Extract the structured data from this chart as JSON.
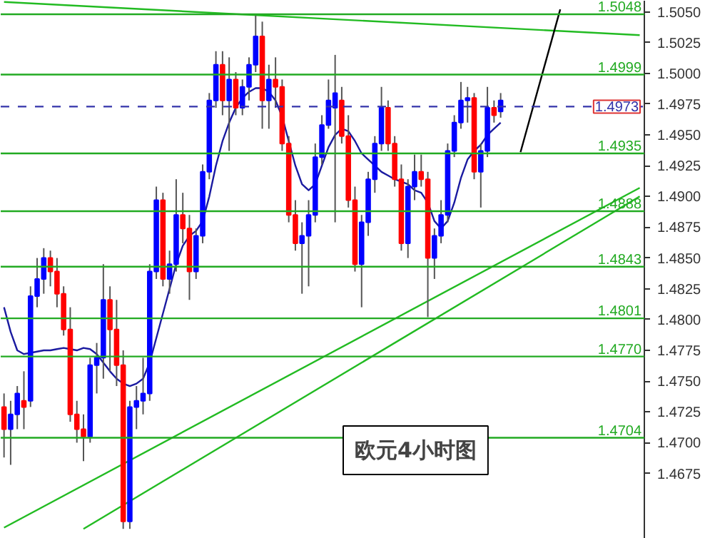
{
  "chart_data": {
    "type": "candlestick",
    "categories": [
      null,
      null,
      null,
      null,
      null,
      null,
      null,
      null,
      null,
      null,
      null,
      null,
      null,
      null,
      null,
      null,
      null,
      null,
      null,
      null,
      null,
      null,
      null,
      null,
      null,
      null,
      null,
      null,
      null,
      null,
      null,
      null,
      null,
      null,
      null,
      null,
      null,
      null,
      null,
      null,
      null,
      null,
      null,
      null,
      null,
      null,
      null,
      null,
      null,
      null,
      null,
      null,
      null,
      null,
      null,
      null,
      null,
      null,
      null,
      null,
      null,
      null,
      null,
      null,
      null,
      null,
      null,
      null,
      null,
      null,
      null,
      null,
      null,
      null,
      null,
      null,
      null,
      null,
      null,
      null,
      null,
      null,
      null,
      null,
      null,
      null,
      null,
      null,
      null,
      null,
      null,
      null,
      null,
      null,
      null,
      null,
      null
    ],
    "ohlc": [
      [
        1.4729,
        1.474,
        1.4688,
        1.4711
      ],
      [
        1.4711,
        1.4734,
        1.4682,
        1.4723
      ],
      [
        1.4723,
        1.4746,
        1.4711,
        1.474
      ],
      [
        1.4734,
        1.4758,
        1.4711,
        1.4729
      ],
      [
        1.4734,
        1.4827,
        1.4729,
        1.4819
      ],
      [
        1.4819,
        1.485,
        1.481,
        1.4833
      ],
      [
        1.4833,
        1.4858,
        1.4821,
        1.485
      ],
      [
        1.485,
        1.4856,
        1.4827,
        1.4839
      ],
      [
        1.4839,
        1.485,
        1.481,
        1.4821
      ],
      [
        1.4821,
        1.4827,
        1.4787,
        1.4792
      ],
      [
        1.4792,
        1.481,
        1.4717,
        1.4723
      ],
      [
        1.4723,
        1.4734,
        1.47,
        1.4711
      ],
      [
        1.4711,
        1.4723,
        1.4685,
        1.4705
      ],
      [
        1.4705,
        1.4769,
        1.47,
        1.4763
      ],
      [
        1.4763,
        1.4781,
        1.474,
        1.4769
      ],
      [
        1.4769,
        1.4845,
        1.4752,
        1.4816
      ],
      [
        1.4816,
        1.4827,
        1.4758,
        1.4792
      ],
      [
        1.4792,
        1.4816,
        1.4746,
        1.4763
      ],
      [
        1.4763,
        1.4775,
        1.463,
        1.4636
      ],
      [
        1.4636,
        1.4734,
        1.463,
        1.4729
      ],
      [
        1.4729,
        1.4746,
        1.4711,
        1.4734
      ],
      [
        1.4734,
        1.4769,
        1.4723,
        1.474
      ],
      [
        1.474,
        1.4845,
        1.4734,
        1.4839
      ],
      [
        1.4839,
        1.4908,
        1.4833,
        1.4897
      ],
      [
        1.4897,
        1.4903,
        1.4827,
        1.4833
      ],
      [
        1.4833,
        1.4856,
        1.4821,
        1.4845
      ],
      [
        1.4845,
        1.4914,
        1.4839,
        1.4885
      ],
      [
        1.4885,
        1.4903,
        1.4862,
        1.4874
      ],
      [
        1.4874,
        1.4885,
        1.4816,
        1.4839
      ],
      [
        1.4839,
        1.4874,
        1.4833,
        1.4868
      ],
      [
        1.4868,
        1.4926,
        1.4862,
        1.492
      ],
      [
        1.492,
        1.4984,
        1.4914,
        1.4978
      ],
      [
        1.4978,
        1.5018,
        1.4972,
        1.5007
      ],
      [
        1.5007,
        1.5018,
        1.4966,
        1.4978
      ],
      [
        1.4978,
        1.5013,
        1.4937,
        1.4995
      ],
      [
        1.4995,
        1.5001,
        1.4966,
        1.4972
      ],
      [
        1.4972,
        1.4995,
        1.4966,
        1.4989
      ],
      [
        1.4989,
        1.5013,
        1.4978,
        1.5007
      ],
      [
        1.5007,
        1.5047,
        1.5001,
        1.503
      ],
      [
        1.503,
        1.5042,
        1.4955,
        1.4978
      ],
      [
        1.4978,
        1.5007,
        1.4955,
        1.4995
      ],
      [
        1.4995,
        1.5013,
        1.4972,
        1.4989
      ],
      [
        1.4989,
        1.4995,
        1.4937,
        1.4943
      ],
      [
        1.4943,
        1.4949,
        1.4879,
        1.4885
      ],
      [
        1.4885,
        1.4897,
        1.4856,
        1.4862
      ],
      [
        1.4862,
        1.4879,
        1.4821,
        1.4868
      ],
      [
        1.4868,
        1.4897,
        1.4827,
        1.4885
      ],
      [
        1.4885,
        1.4943,
        1.4879,
        1.4932
      ],
      [
        1.4932,
        1.4966,
        1.4926,
        1.4958
      ],
      [
        1.4958,
        1.4995,
        1.4955,
        1.4978
      ],
      [
        1.4972,
        1.5015,
        1.4879,
        1.4984
      ],
      [
        1.4978,
        1.4989,
        1.4943,
        1.4949
      ],
      [
        1.4949,
        1.4966,
        1.4891,
        1.4897
      ],
      [
        1.4897,
        1.4908,
        1.4839,
        1.4845
      ],
      [
        1.4845,
        1.4885,
        1.481,
        1.4879
      ],
      [
        1.4879,
        1.492,
        1.4868,
        1.4914
      ],
      [
        1.4914,
        1.4949,
        1.4903,
        1.4943
      ],
      [
        1.4943,
        1.4989,
        1.4937,
        1.4972
      ],
      [
        1.4972,
        1.4978,
        1.4937,
        1.4943
      ],
      [
        1.4943,
        1.4949,
        1.4908,
        1.4914
      ],
      [
        1.4914,
        1.4926,
        1.4856,
        1.4862
      ],
      [
        1.4862,
        1.4914,
        1.485,
        1.4908
      ],
      [
        1.4908,
        1.4934,
        1.4897,
        1.492
      ],
      [
        1.492,
        1.4934,
        1.4908,
        1.4914
      ],
      [
        1.4914,
        1.492,
        1.4802,
        1.485
      ],
      [
        1.485,
        1.4874,
        1.4833,
        1.4868
      ],
      [
        1.4868,
        1.4897,
        1.4862,
        1.4885
      ],
      [
        1.4885,
        1.4943,
        1.4879,
        1.4937
      ],
      [
        1.4937,
        1.4966,
        1.4932,
        1.496
      ],
      [
        1.496,
        1.4993,
        1.4955,
        1.4978
      ],
      [
        1.4978,
        1.4989,
        1.496,
        1.498
      ],
      [
        1.498,
        1.4984,
        1.4914,
        1.492
      ],
      [
        1.492,
        1.4943,
        1.4891,
        1.4937
      ],
      [
        1.4937,
        1.4989,
        1.4932,
        1.4972
      ],
      [
        1.4972,
        1.4978,
        1.496,
        1.4966
      ],
      [
        1.4969,
        1.4984,
        1.4964,
        1.4978
      ],
      null,
      null,
      null,
      null,
      null,
      null,
      null,
      null,
      null,
      null,
      null,
      null,
      null,
      null,
      null,
      null,
      null,
      null,
      null,
      null,
      null
    ],
    "colors": [
      "#ff0000",
      "#0000ff",
      "#0000ff",
      "#ff0000",
      "#0000ff",
      "#0000ff",
      "#0000ff",
      "#ff0000",
      "#ff0000",
      "#ff0000",
      "#ff0000",
      "#ff0000",
      "#ff0000",
      "#0000ff",
      "#0000ff",
      "#0000ff",
      "#ff0000",
      "#ff0000",
      "#ff0000",
      "#0000ff",
      "#0000ff",
      "#0000ff",
      "#0000ff",
      "#0000ff",
      "#ff0000",
      "#0000ff",
      "#0000ff",
      "#ff0000",
      "#ff0000",
      "#0000ff",
      "#0000ff",
      "#0000ff",
      "#0000ff",
      "#ff0000",
      "#0000ff",
      "#ff0000",
      "#0000ff",
      "#0000ff",
      "#0000ff",
      "#ff0000",
      "#0000ff",
      "#ff0000",
      "#ff0000",
      "#ff0000",
      "#ff0000",
      "#0000ff",
      "#0000ff",
      "#0000ff",
      "#0000ff",
      "#0000ff",
      "#0000ff",
      "#ff0000",
      "#ff0000",
      "#ff0000",
      "#0000ff",
      "#0000ff",
      "#0000ff",
      "#0000ff",
      "#ff0000",
      "#ff0000",
      "#ff0000",
      "#0000ff",
      "#0000ff",
      "#ff0000",
      "#ff0000",
      "#0000ff",
      "#0000ff",
      "#0000ff",
      "#0000ff",
      "#0000ff",
      "#0000ff",
      "#ff0000",
      "#0000ff",
      "#0000ff",
      "#ff0000",
      "#0000ff",
      null,
      null,
      null,
      null,
      null,
      null,
      null,
      null,
      null,
      null,
      null,
      null,
      null,
      null,
      null,
      null,
      null,
      null,
      null,
      null,
      null
    ],
    "series": [
      {
        "type": "line",
        "color": "#1a1aa0",
        "values": [
          1.481,
          1.479,
          1.4775,
          1.4772,
          1.4773,
          1.4774,
          1.4775,
          1.4775,
          1.4776,
          1.4777,
          1.4776,
          1.4775,
          1.4777,
          1.4776,
          1.4772,
          1.4765,
          1.4758,
          1.4752,
          1.4748,
          1.4746,
          1.4748,
          1.4752,
          1.4765,
          1.4785,
          1.4805,
          1.4825,
          1.4845,
          1.486,
          1.4868,
          1.4872,
          1.488,
          1.49,
          1.4925,
          1.4945,
          1.496,
          1.4972,
          1.498,
          1.4985,
          1.4988,
          1.4988,
          1.4985,
          1.4978,
          1.4965,
          1.4945,
          1.4925,
          1.491,
          1.4905,
          1.491,
          1.4925,
          1.494,
          1.495,
          1.4955,
          1.4953,
          1.4945,
          1.4935,
          1.493,
          1.4925,
          1.492,
          1.4917,
          1.4914,
          1.4912,
          1.491,
          1.4905,
          1.4903,
          1.4895,
          1.488,
          1.4874,
          1.488,
          1.4895,
          1.4915,
          1.493,
          1.4937,
          1.4942,
          1.495,
          1.4955,
          1.496,
          null,
          null,
          null,
          null,
          null,
          null,
          null,
          null,
          null,
          null,
          null,
          null,
          null,
          null,
          null,
          null,
          null,
          null,
          null,
          null,
          null
        ]
      },
      {
        "type": "line",
        "color": "#22bb22",
        "values": [
          1.5058,
          null,
          null,
          null,
          null,
          null,
          null,
          null,
          null,
          null,
          null,
          null,
          null,
          null,
          null,
          null,
          null,
          null,
          null,
          null,
          null,
          null,
          null,
          null,
          null,
          null,
          null,
          null,
          null,
          null,
          null,
          null,
          null,
          null,
          null,
          null,
          null,
          null,
          null,
          null,
          null,
          null,
          null,
          null,
          null,
          null,
          null,
          null,
          null,
          null,
          null,
          null,
          null,
          null,
          null,
          null,
          null,
          null,
          null,
          null,
          null,
          null,
          null,
          null,
          null,
          null,
          null,
          null,
          null,
          null,
          null,
          null,
          null,
          null,
          null,
          null,
          null,
          null,
          null,
          null,
          null,
          null,
          null,
          null,
          null,
          null,
          null,
          null,
          null,
          null,
          null,
          null,
          null,
          null,
          null,
          null,
          1.5031
        ]
      },
      {
        "type": "line",
        "color": "#22bb22",
        "values": [
          1.4631,
          null,
          null,
          null,
          null,
          null,
          null,
          null,
          null,
          null,
          null,
          null,
          null,
          null,
          null,
          null,
          null,
          null,
          null,
          null,
          null,
          null,
          null,
          null,
          null,
          null,
          null,
          null,
          null,
          null,
          null,
          null,
          null,
          null,
          null,
          null,
          null,
          null,
          null,
          null,
          null,
          null,
          null,
          null,
          null,
          null,
          null,
          null,
          null,
          null,
          null,
          null,
          null,
          null,
          null,
          null,
          null,
          null,
          null,
          null,
          null,
          null,
          null,
          null,
          null,
          null,
          null,
          null,
          null,
          null,
          null,
          null,
          null,
          null,
          null,
          null,
          null,
          null,
          null,
          null,
          null,
          null,
          null,
          null,
          null,
          null,
          null,
          null,
          null,
          null,
          null,
          null,
          null,
          null,
          null,
          null,
          1.4907
        ]
      },
      {
        "type": "line",
        "color": "#22bb22",
        "values": [
          null,
          null,
          null,
          null,
          null,
          null,
          null,
          null,
          null,
          null,
          null,
          null,
          1.463,
          null,
          null,
          null,
          null,
          null,
          null,
          null,
          null,
          null,
          null,
          null,
          null,
          null,
          null,
          null,
          null,
          null,
          null,
          null,
          null,
          null,
          null,
          null,
          null,
          null,
          null,
          null,
          null,
          null,
          null,
          null,
          null,
          null,
          null,
          null,
          null,
          null,
          null,
          null,
          null,
          null,
          null,
          null,
          null,
          null,
          null,
          null,
          null,
          null,
          null,
          null,
          null,
          null,
          null,
          null,
          null,
          null,
          null,
          null,
          null,
          null,
          null,
          null,
          null,
          null,
          null,
          null,
          null,
          null,
          null,
          null,
          null,
          null,
          null,
          null,
          null,
          null,
          null,
          null,
          null,
          null,
          null,
          null,
          1.49
        ]
      },
      {
        "type": "line",
        "color": "#000000",
        "values": [
          null,
          null,
          null,
          null,
          null,
          null,
          null,
          null,
          null,
          null,
          null,
          null,
          null,
          null,
          null,
          null,
          null,
          null,
          null,
          null,
          null,
          null,
          null,
          null,
          null,
          null,
          null,
          null,
          null,
          null,
          null,
          null,
          null,
          null,
          null,
          null,
          null,
          null,
          null,
          null,
          null,
          null,
          null,
          null,
          null,
          null,
          null,
          null,
          null,
          null,
          null,
          null,
          null,
          null,
          null,
          null,
          null,
          null,
          null,
          null,
          null,
          null,
          null,
          null,
          null,
          null,
          null,
          null,
          null,
          null,
          null,
          null,
          null,
          null,
          null,
          null,
          null,
          null,
          1.4936,
          null,
          null,
          null,
          null,
          null,
          1.5052,
          null,
          null,
          null,
          null,
          null,
          null,
          null,
          null,
          null,
          null,
          null,
          null
        ]
      }
    ],
    "ylim": [
      1.4622,
      1.5059
    ],
    "yticks": [
      {
        "value": 1.4675,
        "label": "1.4675"
      },
      {
        "value": 1.47,
        "label": "1.4700"
      },
      {
        "value": 1.4725,
        "label": "1.4725"
      },
      {
        "value": 1.475,
        "label": "1.4750"
      },
      {
        "value": 1.4775,
        "label": "1.4775"
      },
      {
        "value": 1.48,
        "label": "1.4800"
      },
      {
        "value": 1.4825,
        "label": "1.4825"
      },
      {
        "value": 1.485,
        "label": "1.4850"
      },
      {
        "value": 1.4875,
        "label": "1.4875"
      },
      {
        "value": 1.49,
        "label": "1.4900"
      },
      {
        "value": 1.4925,
        "label": "1.4925"
      },
      {
        "value": 1.495,
        "label": "1.4950"
      },
      {
        "value": 1.4975,
        "label": "1.4975"
      },
      {
        "value": 1.5,
        "label": "1.5000"
      },
      {
        "value": 1.5025,
        "label": "1.5025"
      },
      {
        "value": 1.505,
        "label": "1.5050"
      }
    ],
    "ref_lines": [
      {
        "axis": "y",
        "value": 1.5048,
        "label": "1.5048",
        "color": "#22aa22"
      },
      {
        "axis": "y",
        "value": 1.4999,
        "label": "1.4999",
        "color": "#22aa22"
      },
      {
        "axis": "y",
        "value": 1.4973,
        "label": "1.4973",
        "color": "#3333aa",
        "line_style": "dashed"
      },
      {
        "axis": "y",
        "value": 1.4935,
        "label": "1.4935",
        "color": "#22aa22"
      },
      {
        "axis": "y",
        "value": 1.4888,
        "label": "1.4888",
        "color": "#22aa22"
      },
      {
        "axis": "y",
        "value": 1.4843,
        "label": "1.4843",
        "color": "#22aa22"
      },
      {
        "axis": "y",
        "value": 1.4801,
        "label": "1.4801",
        "color": "#22aa22"
      },
      {
        "axis": "y",
        "value": 1.477,
        "label": "1.4770",
        "color": "#22aa22"
      },
      {
        "axis": "y",
        "value": 1.4704,
        "label": "1.4704",
        "color": "#22aa22"
      }
    ],
    "annotations": [
      "欧元4小时图"
    ]
  }
}
